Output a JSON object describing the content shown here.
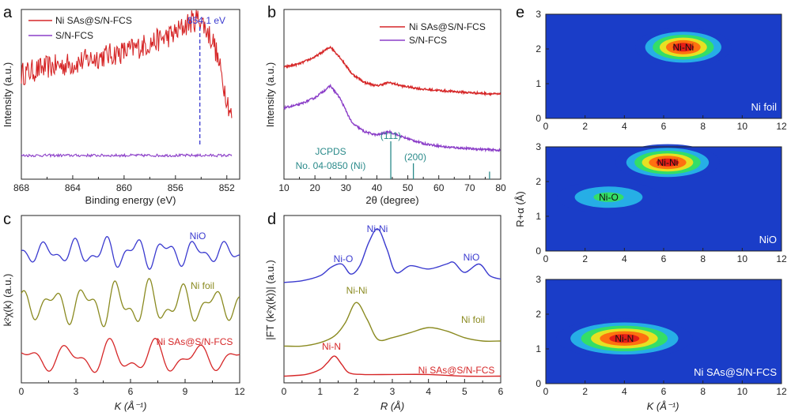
{
  "chart_data": [
    {
      "panel": "a",
      "type": "line",
      "xlabel": "Binding energy (eV)",
      "ylabel": "Intensity (a.u.)",
      "xlim": [
        868,
        851
      ],
      "x_reversed": true,
      "xticks": [
        "868",
        "864",
        "860",
        "856",
        "852"
      ],
      "series": [
        {
          "name": "Ni SAs@S/N-FCS",
          "color": "#d62728",
          "x": [
            868,
            866,
            864,
            862,
            860,
            858,
            856,
            855,
            854.1,
            853,
            852,
            851.6
          ],
          "y": [
            0.62,
            0.66,
            0.68,
            0.72,
            0.75,
            0.8,
            0.86,
            0.92,
            0.95,
            0.8,
            0.48,
            0.36
          ]
        },
        {
          "name": "S/N-FCS",
          "color": "#8b3ec8",
          "x": [
            868,
            851.6
          ],
          "y": [
            0.14,
            0.14
          ]
        }
      ],
      "annotation": {
        "text": "854.1 eV",
        "x": 854.1
      }
    },
    {
      "panel": "b",
      "type": "line",
      "xlabel": "2θ (degree)",
      "ylabel": "Intensity (a.u.)",
      "xlim": [
        10,
        80
      ],
      "xticks": [
        "10",
        "20",
        "30",
        "40",
        "50",
        "60",
        "70",
        "80"
      ],
      "series": [
        {
          "name": "Ni SAs@S/N-FCS",
          "color": "#d62728",
          "x": [
            10,
            15,
            20,
            25,
            28,
            32,
            36,
            40,
            44,
            48,
            55,
            62,
            70,
            80
          ],
          "y": [
            0.66,
            0.68,
            0.72,
            0.78,
            0.72,
            0.62,
            0.57,
            0.55,
            0.57,
            0.55,
            0.53,
            0.52,
            0.51,
            0.5
          ]
        },
        {
          "name": "S/N-FCS",
          "color": "#8b3ec8",
          "x": [
            10,
            15,
            20,
            25,
            28,
            32,
            36,
            40,
            44,
            48,
            55,
            62,
            70,
            80
          ],
          "y": [
            0.42,
            0.44,
            0.48,
            0.55,
            0.48,
            0.33,
            0.28,
            0.26,
            0.28,
            0.25,
            0.21,
            0.19,
            0.18,
            0.17
          ]
        }
      ],
      "reference": {
        "label_line1": "JCPDS",
        "label_line2": "No. 04-0850 (Ni)",
        "color": "#2a8a8a",
        "peaks": [
          {
            "x": 44.5,
            "h": 1.0,
            "label": "(111)"
          },
          {
            "x": 51.8,
            "h": 0.42,
            "label": "(200)"
          },
          {
            "x": 76.4,
            "h": 0.2,
            "label": ""
          }
        ]
      }
    },
    {
      "panel": "c",
      "type": "line",
      "xlabel": "K (Å⁻¹)",
      "ylabel": "k²χ(k) (a.u.)",
      "xlim": [
        0,
        12
      ],
      "xticks": [
        "0",
        "3",
        "6",
        "9",
        "12"
      ],
      "series": [
        {
          "name": "NiO",
          "color": "#3a3acf",
          "offset": 0.78,
          "amp": 0.06,
          "k0": 0.9,
          "dk": 0.42
        },
        {
          "name": "Ni foil",
          "color": "#8a8a20",
          "offset": 0.47,
          "amp": 0.09,
          "k0": 1.3,
          "dk": 0.45
        },
        {
          "name": "Ni SAs@S/N-FCS",
          "color": "#d62728",
          "offset": 0.15,
          "amp": 0.07,
          "k0": 2.0,
          "dk": 0.6
        }
      ]
    },
    {
      "panel": "d",
      "type": "line",
      "xlabel": "R (Å)",
      "ylabel": "|FT (k²χ(k))| (a.u.)",
      "xlim": [
        0,
        6
      ],
      "xticks": [
        "0",
        "1",
        "2",
        "3",
        "4",
        "5",
        "6"
      ],
      "series": [
        {
          "name": "NiO",
          "color": "#3a3acf",
          "x": [
            0,
            0.5,
            1.0,
            1.3,
            1.6,
            1.85,
            2.1,
            2.35,
            2.6,
            2.85,
            3.1,
            3.5,
            4.0,
            4.5,
            4.7,
            5.0,
            5.4,
            5.7,
            6.0
          ],
          "y": [
            0.6,
            0.61,
            0.64,
            0.69,
            0.71,
            0.65,
            0.7,
            0.84,
            0.92,
            0.8,
            0.66,
            0.7,
            0.68,
            0.71,
            0.72,
            0.66,
            0.71,
            0.64,
            0.62
          ]
        },
        {
          "name": "Ni foil",
          "color": "#8a8a20",
          "x": [
            0,
            0.5,
            1.0,
            1.4,
            1.7,
            2.0,
            2.3,
            2.6,
            3.0,
            3.5,
            4.0,
            4.5,
            5.0,
            5.5,
            6.0
          ],
          "y": [
            0.22,
            0.22,
            0.24,
            0.28,
            0.36,
            0.48,
            0.38,
            0.26,
            0.27,
            0.3,
            0.33,
            0.31,
            0.27,
            0.25,
            0.25
          ]
        },
        {
          "name": "Ni SAs@S/N-FCS",
          "color": "#d62728",
          "x": [
            0,
            0.6,
            1.0,
            1.2,
            1.4,
            1.6,
            1.8,
            2.2,
            3.0,
            4.0,
            5.0,
            6.0
          ],
          "y": [
            0.04,
            0.05,
            0.08,
            0.12,
            0.16,
            0.11,
            0.06,
            0.05,
            0.05,
            0.05,
            0.04,
            0.04
          ]
        }
      ],
      "annotations": [
        {
          "text": "Ni-Ni",
          "color": "#3a3acf"
        },
        {
          "text": "Ni-O",
          "color": "#3a3acf"
        },
        {
          "text": "NiO",
          "color": "#3a3acf"
        },
        {
          "text": "Ni-Ni",
          "color": "#8a8a20"
        },
        {
          "text": "Ni foil",
          "color": "#8a8a20"
        },
        {
          "text": "Ni-N",
          "color": "#d62728"
        },
        {
          "text": "Ni SAs@S/N-FCS",
          "color": "#d62728"
        }
      ]
    },
    {
      "panel": "e",
      "type": "heatmap",
      "xlabel": "K (Å⁻¹)",
      "ylabel": "R+α (Å)",
      "xlim": [
        0,
        12
      ],
      "ylim": [
        0,
        3
      ],
      "xticks": [
        "0",
        "2",
        "4",
        "6",
        "8",
        "10",
        "12"
      ],
      "yticks": [
        "0",
        "1",
        "2",
        "3"
      ],
      "colormap": [
        "#1a3dc8",
        "#27b4e8",
        "#35e060",
        "#f0e020",
        "#ff6a10",
        "#e31818"
      ],
      "maps": [
        {
          "name": "Ni foil",
          "peaks": [
            {
              "label": "Ni-Ni",
              "k": 7.0,
              "r": 2.05,
              "sk": 2.4,
              "sr": 0.32,
              "a": 1.0
            }
          ]
        },
        {
          "name": "NiO",
          "peaks": [
            {
              "label": "Ni-Ni",
              "k": 6.2,
              "r": 2.55,
              "sk": 2.6,
              "sr": 0.3,
              "a": 1.0
            },
            {
              "label": "Ni-O",
              "k": 3.2,
              "r": 1.55,
              "sk": 3.2,
              "sr": 0.33,
              "a": 0.55
            }
          ]
        },
        {
          "name": "Ni SAs@S/N-FCS",
          "peaks": [
            {
              "label": "Ni-N",
              "k": 4.0,
              "r": 1.3,
              "sk": 3.4,
              "sr": 0.33,
              "a": 1.0
            }
          ]
        }
      ]
    }
  ],
  "panel_labels": [
    "a",
    "b",
    "c",
    "d",
    "e"
  ]
}
